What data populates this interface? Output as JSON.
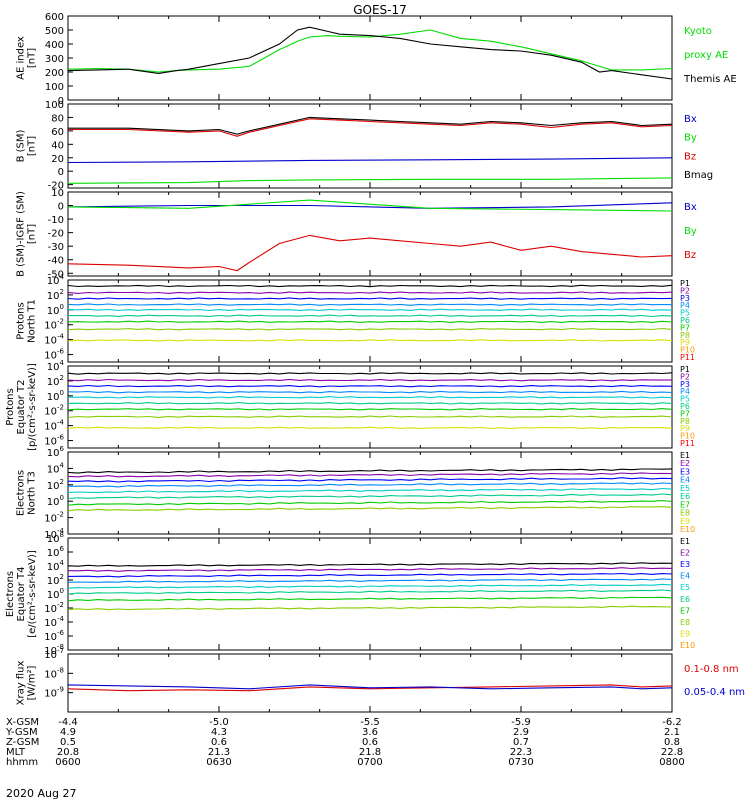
{
  "title": "GOES-17",
  "date": "2020 Aug 27",
  "colors": {
    "black": "#000000",
    "green": "#00dd00",
    "red": "#dd0000",
    "blue": "#0000cc",
    "ch": [
      "#000000",
      "#8800aa",
      "#0000ff",
      "#0088ff",
      "#00cccc",
      "#00cc88",
      "#00cc00",
      "#88cc00",
      "#dddd00",
      "#ff9900",
      "#ff0000",
      "#cc0000"
    ]
  },
  "ephemeris": {
    "labels": [
      "X-GSM",
      "Y-GSM",
      "Z-GSM",
      "MLT",
      "hhmm"
    ],
    "columns": [
      [
        "-4.4",
        "4.9",
        "0.5",
        "20.8",
        "0600"
      ],
      [
        "-5.0",
        "4.3",
        "0.6",
        "21.3",
        "0630"
      ],
      [
        "-5.5",
        "3.6",
        "0.6",
        "21.8",
        "0700"
      ],
      [
        "-5.9",
        "2.9",
        "0.7",
        "22.3",
        "0730"
      ],
      [
        "-6.2",
        "2.1",
        "0.8",
        "22.8",
        "0800"
      ]
    ]
  },
  "chart_data": [
    {
      "type": "line",
      "ylabel": [
        "AE index",
        "[nT]"
      ],
      "ylim": [
        0,
        600
      ],
      "yticks": [
        "0",
        "100",
        "200",
        "300",
        "400",
        "500",
        "600"
      ],
      "series": [
        {
          "name": "Kyoto proxy AE",
          "color": "#00dd00",
          "x": [
            0,
            5,
            10,
            15,
            18,
            20,
            25,
            30,
            35,
            38,
            40,
            43,
            45,
            50,
            55,
            60,
            65,
            70,
            75,
            80,
            85,
            88,
            90,
            95,
            100
          ],
          "y": [
            220,
            225,
            220,
            200,
            210,
            215,
            220,
            240,
            360,
            420,
            450,
            460,
            455,
            450,
            470,
            500,
            440,
            420,
            380,
            330,
            280,
            240,
            215,
            215,
            225
          ]
        },
        {
          "name": "Themis AE",
          "color": "#000000",
          "x": [
            0,
            5,
            10,
            15,
            18,
            20,
            25,
            30,
            35,
            38,
            40,
            43,
            45,
            50,
            55,
            60,
            65,
            70,
            75,
            80,
            85,
            88,
            90,
            95,
            100
          ],
          "y": [
            210,
            215,
            220,
            190,
            210,
            220,
            260,
            300,
            400,
            500,
            520,
            490,
            470,
            460,
            440,
            400,
            380,
            360,
            350,
            320,
            270,
            200,
            210,
            180,
            150
          ]
        }
      ],
      "legend": [
        {
          "text": "Kyoto",
          "color": "#00dd00"
        },
        {
          "text": "proxy AE",
          "color": "#00dd00"
        },
        {
          "text": "Themis AE",
          "color": "#000000"
        }
      ]
    },
    {
      "type": "line",
      "ylabel": [
        "B (SM)",
        "[nT]"
      ],
      "ylim": [
        -25,
        100
      ],
      "yticks": [
        "-20",
        "0",
        "20",
        "40",
        "60",
        "80",
        "100"
      ],
      "ytick_values": [
        -20,
        0,
        20,
        40,
        60,
        80,
        100
      ],
      "series": [
        {
          "name": "Bx",
          "color": "#0000cc",
          "x": [
            0,
            20,
            40,
            60,
            80,
            100
          ],
          "y": [
            13,
            14,
            16,
            17,
            18,
            20
          ]
        },
        {
          "name": "By",
          "color": "#00dd00",
          "x": [
            0,
            20,
            30,
            40,
            60,
            80,
            100
          ],
          "y": [
            -18,
            -17,
            -14,
            -13,
            -12,
            -12,
            -10
          ]
        },
        {
          "name": "Bz",
          "color": "#dd0000",
          "x": [
            0,
            10,
            20,
            25,
            28,
            30,
            35,
            40,
            45,
            50,
            55,
            60,
            65,
            70,
            75,
            80,
            85,
            90,
            95,
            100
          ],
          "y": [
            62,
            62,
            58,
            60,
            52,
            58,
            68,
            78,
            76,
            74,
            72,
            70,
            68,
            72,
            70,
            65,
            70,
            72,
            66,
            68
          ]
        },
        {
          "name": "Bmag",
          "color": "#000000",
          "x": [
            0,
            10,
            20,
            25,
            28,
            30,
            35,
            40,
            45,
            50,
            55,
            60,
            65,
            70,
            75,
            80,
            85,
            90,
            95,
            100
          ],
          "y": [
            64,
            64,
            60,
            62,
            55,
            60,
            70,
            80,
            78,
            76,
            74,
            72,
            70,
            74,
            72,
            68,
            72,
            74,
            68,
            70
          ]
        }
      ],
      "legend": [
        {
          "text": "Bx",
          "color": "#0000cc"
        },
        {
          "text": "By",
          "color": "#00dd00"
        },
        {
          "text": "Bz",
          "color": "#dd0000"
        },
        {
          "text": "Bmag",
          "color": "#000000"
        }
      ]
    },
    {
      "type": "line",
      "ylabel": [
        "B (SM)-IGRF (SM)",
        "[nT]"
      ],
      "ylim": [
        -52,
        10
      ],
      "yticks": [
        "-50",
        "-40",
        "-30",
        "-20",
        "-10",
        "0",
        "10"
      ],
      "ytick_values": [
        -50,
        -40,
        -30,
        -20,
        -10,
        0,
        10
      ],
      "series": [
        {
          "name": "Bx",
          "color": "#0000cc",
          "x": [
            0,
            20,
            40,
            60,
            80,
            100
          ],
          "y": [
            -1,
            0,
            0,
            -2,
            -1,
            2
          ]
        },
        {
          "name": "By",
          "color": "#00dd00",
          "x": [
            0,
            20,
            30,
            40,
            60,
            80,
            100
          ],
          "y": [
            -1,
            -2,
            1,
            4,
            -2,
            -3,
            -4
          ]
        },
        {
          "name": "Bz",
          "color": "#dd0000",
          "x": [
            0,
            10,
            20,
            25,
            28,
            30,
            35,
            40,
            45,
            50,
            55,
            60,
            65,
            70,
            75,
            80,
            85,
            90,
            95,
            100
          ],
          "y": [
            -43,
            -44,
            -46,
            -45,
            -48,
            -42,
            -28,
            -22,
            -26,
            -24,
            -26,
            -28,
            -30,
            -27,
            -33,
            -30,
            -34,
            -36,
            -38,
            -37
          ]
        }
      ],
      "legend": [
        {
          "text": "Bx",
          "color": "#0000cc"
        },
        {
          "text": "By",
          "color": "#00dd00"
        },
        {
          "text": "Bz",
          "color": "#dd0000"
        }
      ]
    },
    {
      "type": "line",
      "yscale": "log",
      "ylabel": [
        "Protons",
        "North T1"
      ],
      "ylim_log10": [
        -7,
        4
      ],
      "yticks": [
        {
          "exp": 4
        },
        {
          "exp": 2
        },
        {
          "exp": 0
        },
        {
          "exp": -2
        },
        {
          "exp": -4
        },
        {
          "exp": -6
        }
      ],
      "levels_log10": [
        3.2,
        2.3,
        1.5,
        0.7,
        0.0,
        -0.8,
        -1.6,
        -2.6,
        -4.1
      ],
      "channels": [
        "P1",
        "P2",
        "P3",
        "P4",
        "P5",
        "P6",
        "P7",
        "P8",
        "P9",
        "P10",
        "P11"
      ]
    },
    {
      "type": "line",
      "yscale": "log",
      "ylabel": [
        "Protons",
        "Equator T2",
        "[p/(cm²-s-sr-keV)]"
      ],
      "ylim_log10": [
        -7,
        4
      ],
      "yticks": [
        {
          "exp": 4
        },
        {
          "exp": 2
        },
        {
          "exp": 0
        },
        {
          "exp": -2
        },
        {
          "exp": -4
        },
        {
          "exp": -6
        }
      ],
      "levels_log10": [
        3.0,
        2.1,
        1.3,
        0.5,
        -0.2,
        -1.0,
        -1.8,
        -2.8,
        -4.3
      ],
      "channels": [
        "P1",
        "P2",
        "P3",
        "P4",
        "P5",
        "P6",
        "P7",
        "P8",
        "P9",
        "P10",
        "P11"
      ]
    },
    {
      "type": "line",
      "yscale": "log",
      "ylabel": [
        "Electrons",
        "North T3"
      ],
      "ylim_log10": [
        -4,
        6
      ],
      "yticks": [
        {
          "exp": 6
        },
        {
          "exp": 4
        },
        {
          "exp": 2
        },
        {
          "exp": 0
        },
        {
          "exp": -2
        },
        {
          "exp": -4
        }
      ],
      "levels_log10": [
        3.5,
        3.0,
        2.4,
        1.8,
        1.1,
        0.4,
        -0.4,
        -1.1
      ],
      "channels": [
        "E1",
        "E2",
        "E3",
        "E4",
        "E5",
        "E6",
        "E7",
        "E8",
        "E9",
        "E10"
      ]
    },
    {
      "type": "line",
      "yscale": "log",
      "ylabel": [
        "Electrons",
        "Equator T4",
        "[e/(cm²-s-sr-keV)]"
      ],
      "ylim_log10": [
        -8,
        8
      ],
      "yticks": [
        {
          "exp": 8
        },
        {
          "exp": 6
        },
        {
          "exp": 4
        },
        {
          "exp": 2
        },
        {
          "exp": 0
        },
        {
          "exp": -2
        },
        {
          "exp": -4
        },
        {
          "exp": -6
        },
        {
          "exp": -8
        }
      ],
      "levels_log10": [
        4.0,
        3.3,
        2.5,
        1.7,
        0.9,
        0.1,
        -0.9,
        -2.2
      ],
      "channels": [
        "E1",
        "E2",
        "E3",
        "E4",
        "E5",
        "E6",
        "E7",
        "E8",
        "E9",
        "E10"
      ]
    },
    {
      "type": "line",
      "yscale": "log",
      "ylabel": [
        "Xray flux",
        "[W/m²]"
      ],
      "ylim_log10": [
        -10,
        -7
      ],
      "yticks": [
        {
          "exp": -7
        },
        {
          "exp": -8
        },
        {
          "exp": -9
        }
      ],
      "series": [
        {
          "name": "0.1-0.8 nm",
          "color": "#dd0000",
          "x": [
            0,
            10,
            20,
            30,
            40,
            50,
            60,
            70,
            80,
            90,
            95,
            100
          ],
          "y": [
            -8.8,
            -8.9,
            -8.85,
            -8.9,
            -8.7,
            -8.8,
            -8.75,
            -8.7,
            -8.65,
            -8.6,
            -8.7,
            -8.65
          ]
        },
        {
          "name": "0.05-0.4 nm",
          "color": "#0000cc",
          "x": [
            0,
            10,
            20,
            30,
            40,
            50,
            60,
            70,
            80,
            90,
            95,
            100
          ],
          "y": [
            -8.6,
            -8.65,
            -8.7,
            -8.8,
            -8.6,
            -8.75,
            -8.7,
            -8.8,
            -8.75,
            -8.7,
            -8.8,
            -8.75
          ]
        }
      ],
      "legend": [
        {
          "text": "0.1-0.8 nm",
          "color": "#dd0000"
        },
        {
          "text": "0.05-0.4 nm",
          "color": "#0000cc"
        }
      ]
    }
  ]
}
